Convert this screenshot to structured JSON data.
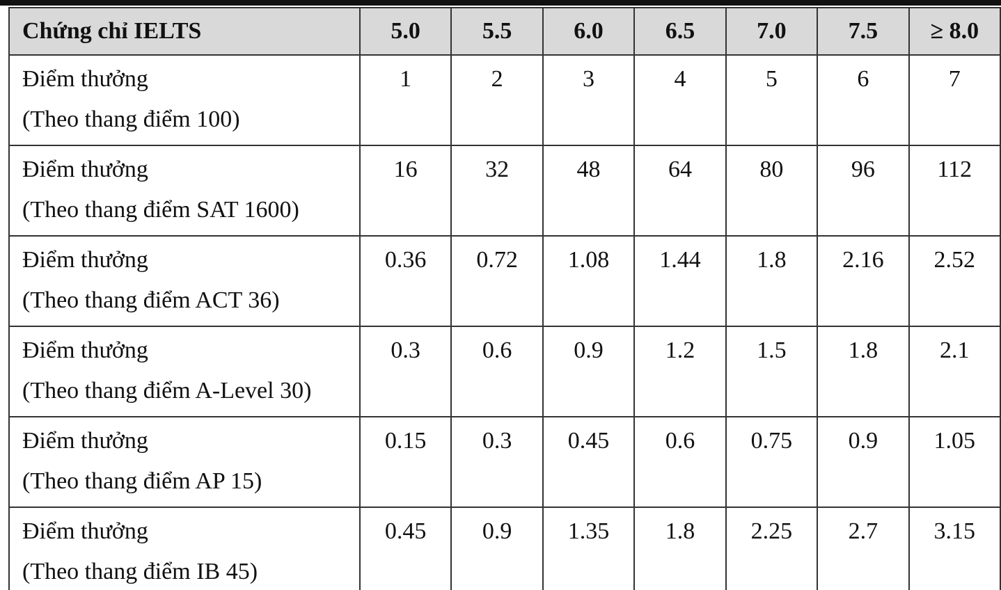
{
  "table": {
    "header": {
      "title": "Chứng chỉ IELTS",
      "columns": [
        "5.0",
        "5.5",
        "6.0",
        "6.5",
        "7.0",
        "7.5",
        "≥ 8.0"
      ]
    },
    "rows": [
      {
        "label": [
          "Điểm thưởng",
          "(Theo thang điểm 100)"
        ],
        "values": [
          "1",
          "2",
          "3",
          "4",
          "5",
          "6",
          "7"
        ]
      },
      {
        "label": [
          "Điểm thưởng",
          "(Theo thang điểm SAT 1600)"
        ],
        "values": [
          "16",
          "32",
          "48",
          "64",
          "80",
          "96",
          "112"
        ]
      },
      {
        "label": [
          "Điểm thưởng",
          "(Theo thang điểm ACT 36)"
        ],
        "values": [
          "0.36",
          "0.72",
          "1.08",
          "1.44",
          "1.8",
          "2.16",
          "2.52"
        ]
      },
      {
        "label": [
          "Điểm thưởng",
          "(Theo thang điểm A-Level 30)"
        ],
        "values": [
          "0.3",
          "0.6",
          "0.9",
          "1.2",
          "1.5",
          "1.8",
          "2.1"
        ]
      },
      {
        "label": [
          "Điểm thưởng",
          "(Theo thang điểm AP 15)"
        ],
        "values": [
          "0.15",
          "0.3",
          "0.45",
          "0.6",
          "0.75",
          "0.9",
          "1.05"
        ]
      },
      {
        "label": [
          "Điểm thưởng",
          "(Theo thang điểm IB 45)"
        ],
        "values": [
          "0.45",
          "0.9",
          "1.35",
          "1.8",
          "2.25",
          "2.7",
          "3.15"
        ]
      }
    ]
  }
}
